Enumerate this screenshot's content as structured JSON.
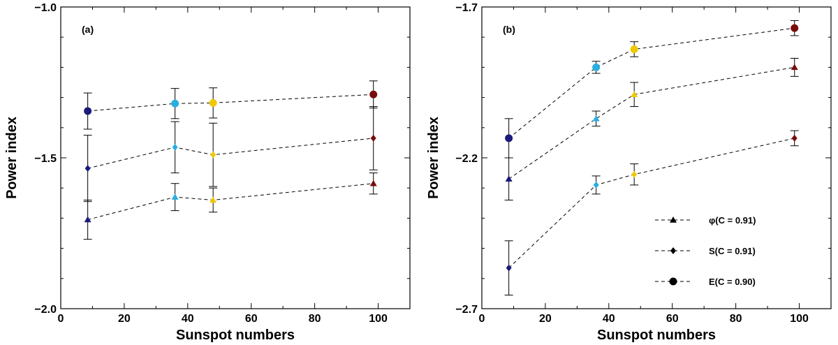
{
  "colors": {
    "ss9": "#1a1a7a",
    "ss36": "#29aee0",
    "ss48": "#f0c800",
    "ss98": "#7a0c0c",
    "line": "#000000"
  },
  "chart_data": [
    {
      "type": "scatter",
      "panel_label": "(a)",
      "xlabel": "Sunspot numbers",
      "ylabel": "Power index",
      "xlim": [
        0,
        110
      ],
      "ylim": [
        -2.0,
        -1.0
      ],
      "xticks": [
        0,
        20,
        40,
        60,
        80,
        100
      ],
      "xtick_labels": [
        "0",
        "20",
        "40",
        "60",
        "80",
        "100"
      ],
      "yticks": [
        -2.0,
        -1.5,
        -1.0
      ],
      "ytick_labels": [
        "−2.0",
        "−1.5",
        "−1.0"
      ],
      "x": [
        8.5,
        36,
        48,
        98.5
      ],
      "point_colors": [
        "ss9",
        "ss36",
        "ss48",
        "ss98"
      ],
      "series": [
        {
          "name": "E",
          "marker": "circle",
          "values": [
            -1.345,
            -1.32,
            -1.318,
            -1.29
          ],
          "errors": [
            0.06,
            0.05,
            0.05,
            0.045
          ]
        },
        {
          "name": "S",
          "marker": "diamond",
          "values": [
            -1.535,
            -1.465,
            -1.49,
            -1.435
          ],
          "errors": [
            0.11,
            0.085,
            0.105,
            0.105
          ]
        },
        {
          "name": "φ",
          "marker": "triangle",
          "values": [
            -1.705,
            -1.63,
            -1.64,
            -1.585
          ],
          "errors": [
            0.065,
            0.045,
            0.04,
            0.035
          ]
        }
      ],
      "legend": null
    },
    {
      "type": "scatter",
      "panel_label": "(b)",
      "xlabel": "Sunspot numbers",
      "ylabel": "Power index",
      "xlim": [
        0,
        110
      ],
      "ylim": [
        -2.7,
        -1.7
      ],
      "xticks": [
        0,
        20,
        40,
        60,
        80,
        100
      ],
      "xtick_labels": [
        "0",
        "20",
        "40",
        "60",
        "80",
        "100"
      ],
      "yticks": [
        -2.7,
        -2.2,
        -1.7
      ],
      "ytick_labels": [
        "−2.7",
        "−2.2",
        "−1.7"
      ],
      "x": [
        8.5,
        36,
        48,
        98.5
      ],
      "point_colors": [
        "ss9",
        "ss36",
        "ss48",
        "ss98"
      ],
      "series": [
        {
          "name": "E",
          "marker": "circle",
          "values": [
            -2.135,
            -1.9,
            -1.84,
            -1.77
          ],
          "errors": [
            0.065,
            0.02,
            0.025,
            0.025
          ]
        },
        {
          "name": "S",
          "marker": "diamond",
          "values": [
            -2.565,
            -2.29,
            -2.255,
            -2.135
          ],
          "errors": [
            0.09,
            0.03,
            0.035,
            0.025
          ]
        },
        {
          "name": "φ",
          "marker": "triangle",
          "values": [
            -2.27,
            -2.07,
            -1.99,
            -1.9
          ],
          "errors": [
            0.07,
            0.025,
            0.04,
            0.03
          ]
        }
      ],
      "legend": [
        {
          "marker": "triangle",
          "label": "φ(C = 0.91)"
        },
        {
          "marker": "diamond",
          "label": "S(C = 0.91)"
        },
        {
          "marker": "circle",
          "label": "E(C = 0.90)"
        }
      ],
      "legend_position": "bottom-right"
    }
  ]
}
